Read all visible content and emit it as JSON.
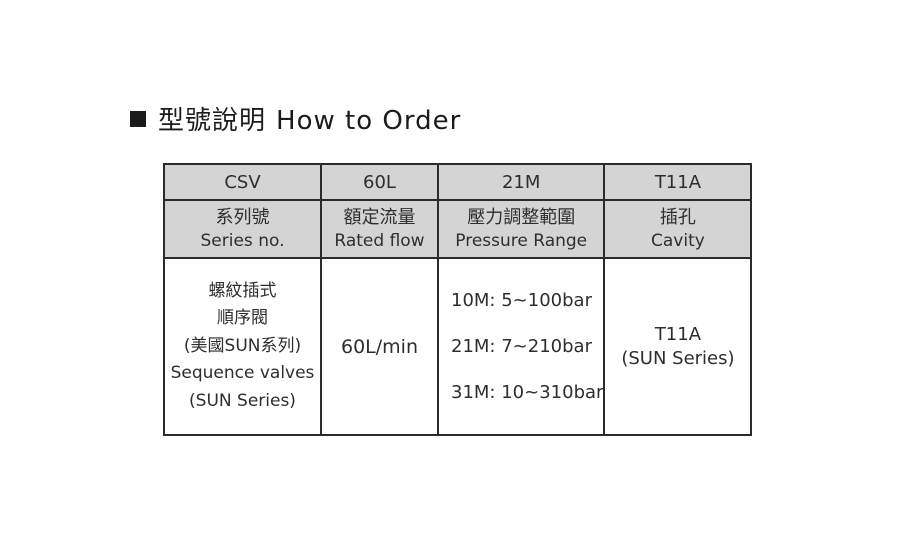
{
  "title": {
    "zh": "型號說明",
    "en": "How to Order"
  },
  "table": {
    "codes": [
      "CSV",
      "60L",
      "21M",
      "T11A"
    ],
    "headers": [
      {
        "zh": "系列號",
        "en": "Series no."
      },
      {
        "zh": "額定流量",
        "en": "Rated flow"
      },
      {
        "zh": "壓力調整範圍",
        "en": "Pressure Range"
      },
      {
        "zh": "插孔",
        "en": "Cavity"
      }
    ],
    "body": {
      "series": {
        "lines": [
          "螺紋插式",
          "順序閥",
          "(美國SUN系列)",
          "Sequence valves",
          "(SUN Series)"
        ]
      },
      "rated_flow": "60L/min",
      "pressure_ranges": [
        "10M: 5~100bar",
        "21M: 7~210bar",
        "31M: 10~310bar"
      ],
      "cavity": {
        "lines": [
          "T11A",
          "(SUN Series)"
        ]
      }
    }
  },
  "colors": {
    "header_bg": "#d4d4d4",
    "border": "#2b2b2b",
    "text": "#2e2e2e",
    "title_bullet": "#1b1b1b"
  }
}
